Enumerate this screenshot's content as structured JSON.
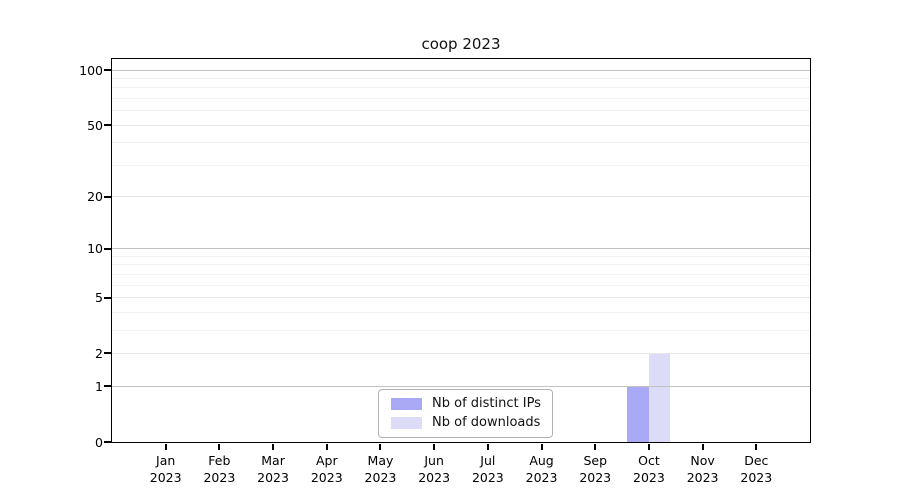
{
  "chart_data": {
    "type": "bar",
    "title": "coop 2023",
    "categories": [
      "Jan",
      "Feb",
      "Mar",
      "Apr",
      "May",
      "Jun",
      "Jul",
      "Aug",
      "Sep",
      "Oct",
      "Nov",
      "Dec"
    ],
    "category_year": "2023",
    "series": [
      {
        "name": "Nb of distinct IPs",
        "color": "#a9a9f6",
        "values": [
          0,
          0,
          0,
          0,
          0,
          0,
          0,
          0,
          0,
          1,
          0,
          0
        ]
      },
      {
        "name": "Nb of downloads",
        "color": "#dcdcf8",
        "values": [
          0,
          0,
          0,
          0,
          0,
          0,
          0,
          0,
          0,
          2,
          0,
          0
        ]
      }
    ],
    "yscale": "log1p",
    "ylim": [
      0,
      115
    ],
    "y_ticks_labeled": [
      0,
      1,
      2,
      5,
      10,
      20,
      50,
      100
    ],
    "y_gridlines_decade": [
      1,
      10,
      100
    ],
    "y_gridlines_sub": [
      2,
      5,
      20,
      50
    ],
    "y_gridlines_minor": [
      3,
      4,
      6,
      7,
      8,
      9,
      30,
      40,
      60,
      70,
      80,
      90
    ],
    "grid": true,
    "legend_position": "bottom-center",
    "xlabel": "",
    "ylabel": ""
  },
  "colors": {
    "grid_decade": "#c2c2c2",
    "grid_sub": "#e6e6e6",
    "grid_minor": "#f2f2f2",
    "spine": "#000000",
    "legend_border": "#b3b3b3",
    "background": "#ffffff"
  }
}
